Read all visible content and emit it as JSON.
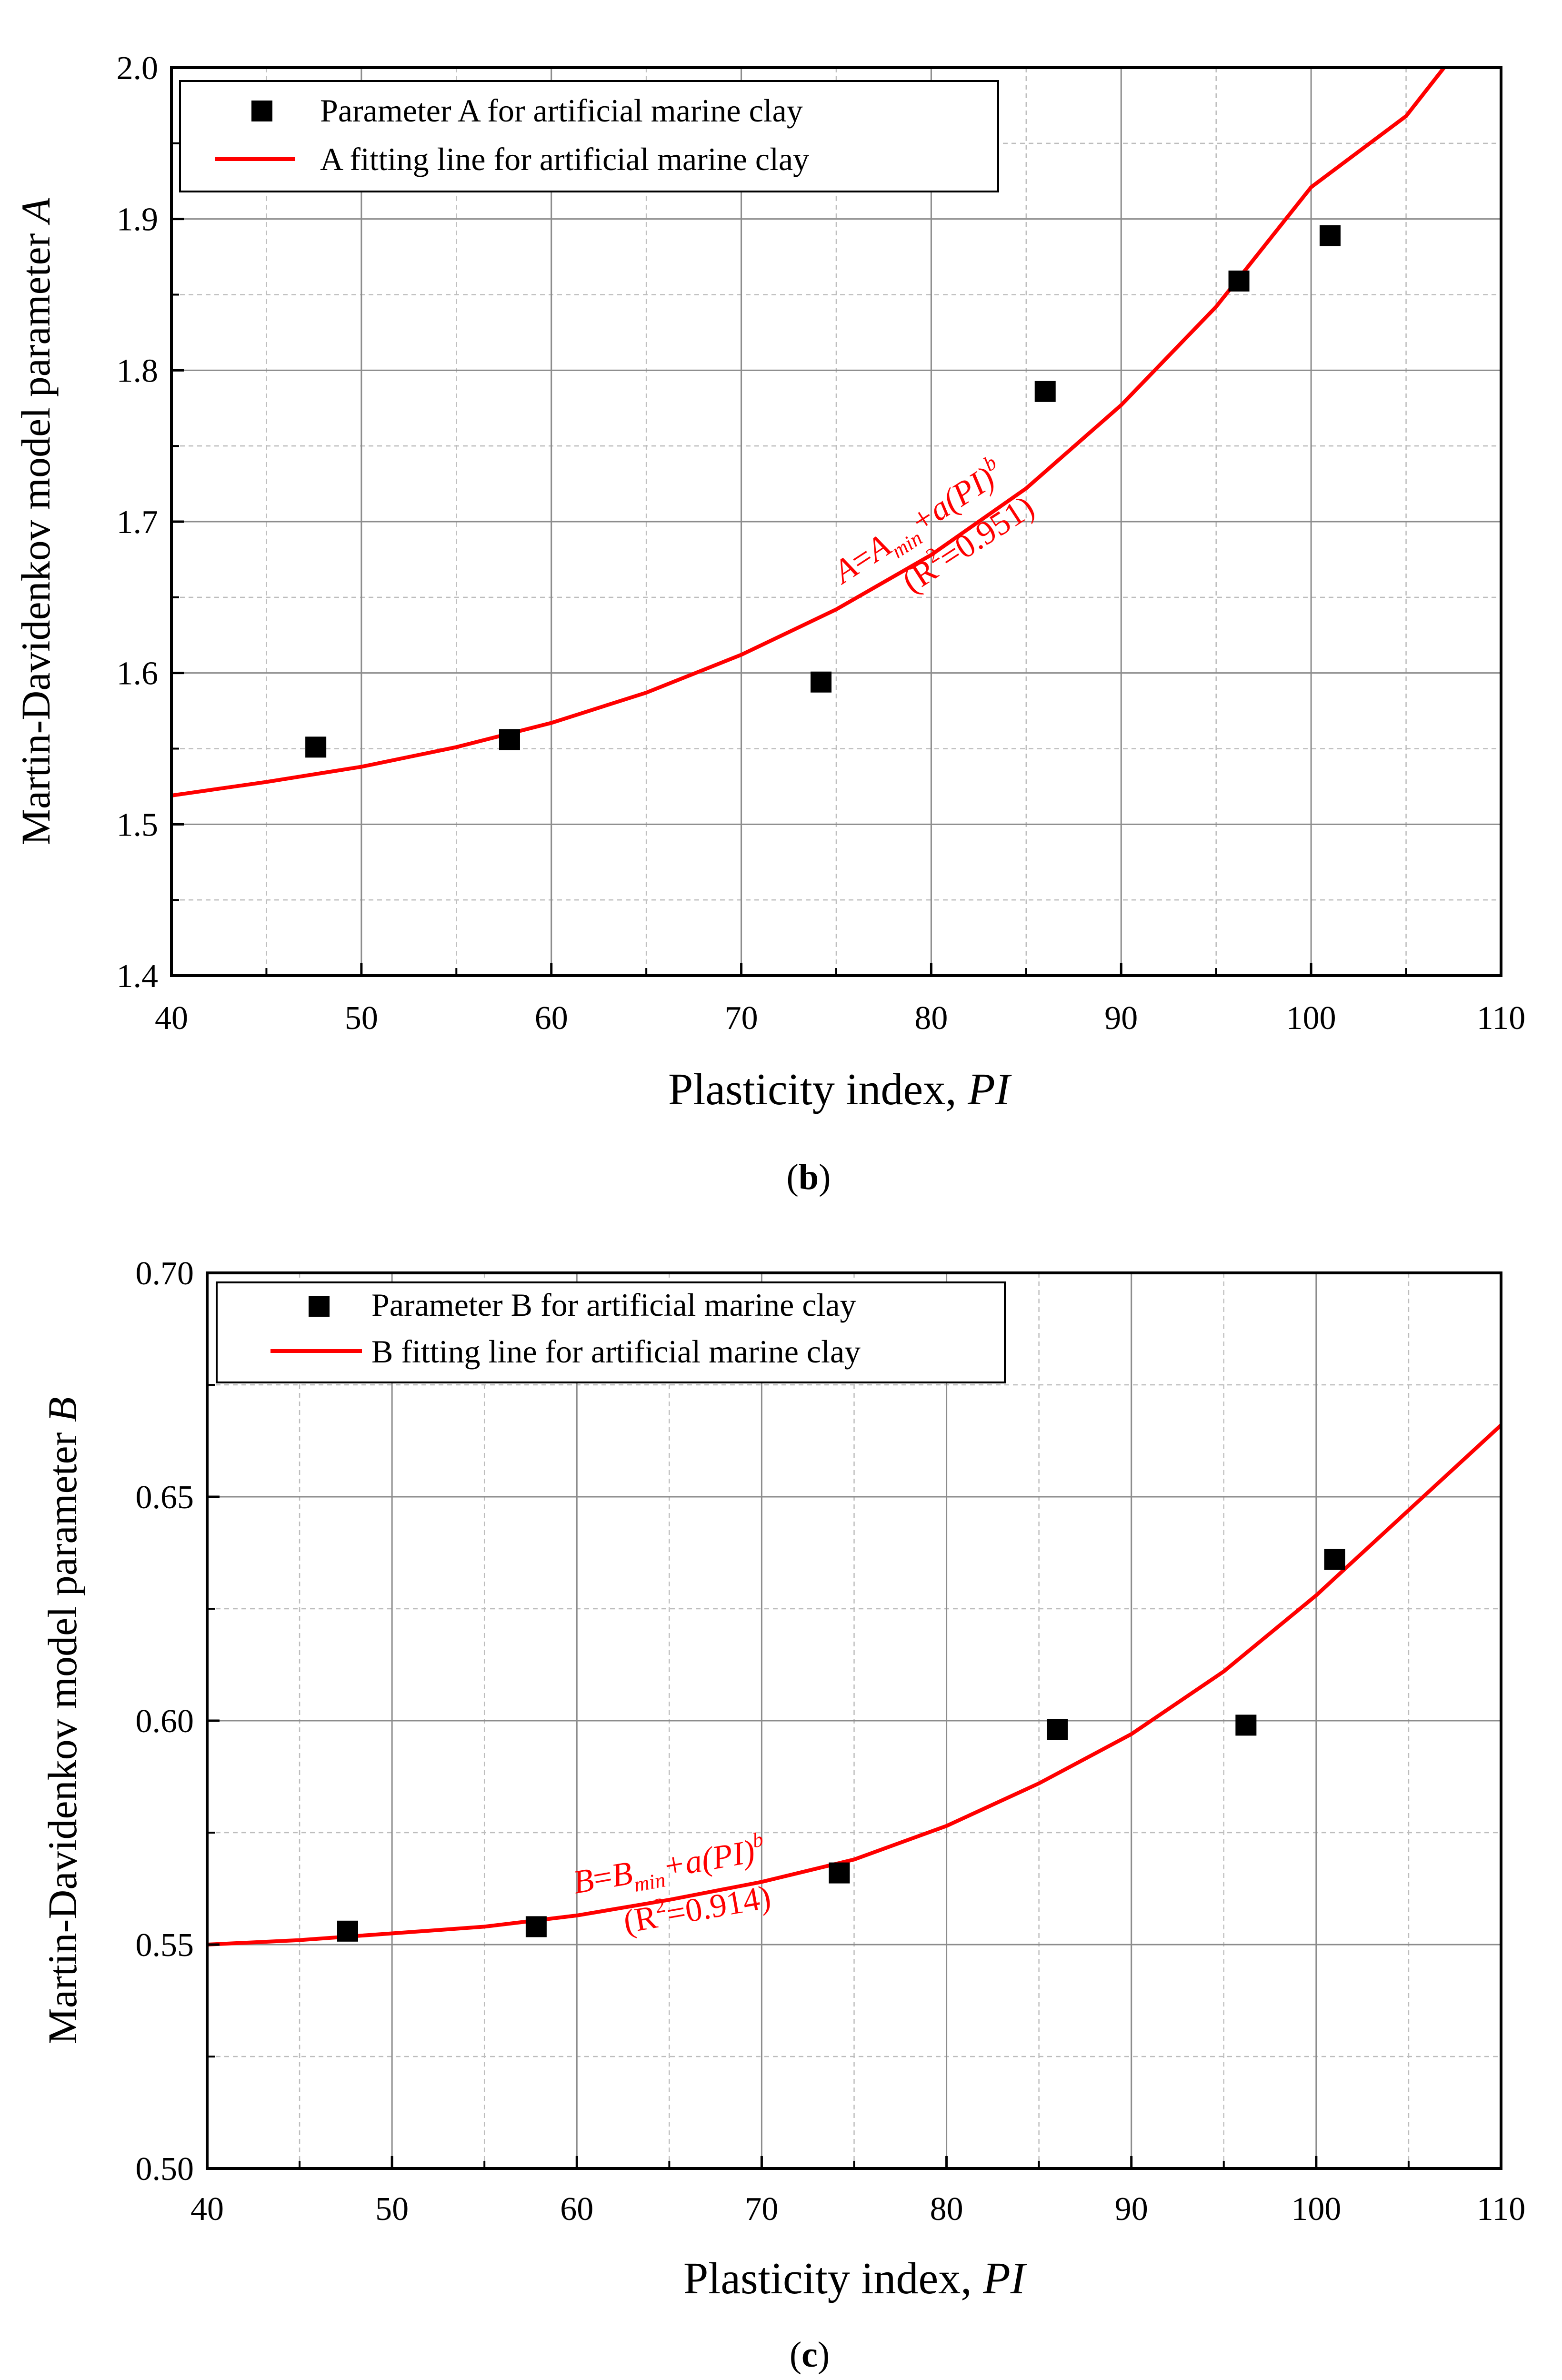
{
  "chart_data": [
    {
      "panel": "b",
      "caption": "b",
      "type": "scatter",
      "xlabel": "Plasticity index, ",
      "xlabel_var": "PI",
      "ylabel": "Martin-Davidenkov model parameter ",
      "ylabel_var": "A",
      "xlim": [
        40,
        110
      ],
      "ylim": [
        1.4,
        2.0
      ],
      "xticks": [
        40,
        50,
        60,
        70,
        80,
        90,
        100,
        110
      ],
      "xtick_labels": [
        "40",
        "50",
        "60",
        "70",
        "80",
        "90",
        "100",
        "110"
      ],
      "yticks": [
        1.4,
        1.5,
        1.6,
        1.7,
        1.8,
        1.9,
        2.0
      ],
      "ytick_labels": [
        "1.4",
        "1.5",
        "1.6",
        "1.7",
        "1.8",
        "1.9",
        "2.0"
      ],
      "grid": true,
      "legend_position": "top-left",
      "series": [
        {
          "name": "Parameter A for artificial marine clay",
          "kind": "marker",
          "color": "#000000",
          "x": [
            47.6,
            57.8,
            74.2,
            86.0,
            96.2,
            101.0
          ],
          "y": [
            1.551,
            1.556,
            1.594,
            1.786,
            1.859,
            1.889
          ]
        },
        {
          "name": "A fitting line for artificial marine clay",
          "kind": "line",
          "color": "#ff0000",
          "x": [
            40,
            45,
            50,
            55,
            60,
            65,
            70,
            75,
            80,
            85,
            90,
            95,
            100,
            105,
            107
          ],
          "y": [
            1.519,
            1.528,
            1.538,
            1.551,
            1.567,
            1.587,
            1.612,
            1.642,
            1.678,
            1.722,
            1.777,
            1.842,
            1.921,
            1.968,
            2.0
          ]
        }
      ],
      "annotation": {
        "eq_var": "A",
        "eq_eq": "=",
        "eq_min_var": "A",
        "eq_sub": "min",
        "eq_term": "+a(PI)",
        "eq_sup": "b",
        "r_open": "(R",
        "r_sup": "2",
        "r_close": "=0.951)"
      }
    },
    {
      "panel": "c",
      "caption": "c",
      "type": "scatter",
      "xlabel": "Plasticity index, ",
      "xlabel_var": "PI",
      "ylabel": "Martin-Davidenkov model parameter ",
      "ylabel_var": "B",
      "xlim": [
        40,
        110
      ],
      "ylim": [
        0.5,
        0.7
      ],
      "xticks": [
        40,
        50,
        60,
        70,
        80,
        90,
        100,
        110
      ],
      "xtick_labels": [
        "40",
        "50",
        "60",
        "70",
        "80",
        "90",
        "100",
        "110"
      ],
      "yticks": [
        0.5,
        0.55,
        0.6,
        0.65,
        0.7
      ],
      "ytick_labels": [
        "0.50",
        "0.55",
        "0.60",
        "0.65",
        "0.70"
      ],
      "grid": true,
      "legend_position": "top-left",
      "series": [
        {
          "name": "Parameter B for artificial marine clay",
          "kind": "marker",
          "color": "#000000",
          "x": [
            47.6,
            57.8,
            74.2,
            86.0,
            96.2,
            101.0
          ],
          "y": [
            0.553,
            0.554,
            0.566,
            0.598,
            0.599,
            0.636
          ]
        },
        {
          "name": "B fitting line for artificial marine clay",
          "kind": "line",
          "color": "#ff0000",
          "x": [
            40,
            45,
            50,
            55,
            60,
            65,
            70,
            75,
            80,
            85,
            90,
            95,
            100,
            105,
            110
          ],
          "y": [
            0.55,
            0.551,
            0.5525,
            0.554,
            0.5565,
            0.56,
            0.564,
            0.569,
            0.5765,
            0.586,
            0.597,
            0.611,
            0.628,
            0.647,
            0.666
          ]
        }
      ],
      "annotation": {
        "eq_var": "B",
        "eq_eq": "=",
        "eq_min_var": "B",
        "eq_sub": "min",
        "eq_term": "+a(PI)",
        "eq_sup": "b",
        "r_open": "(R",
        "r_sup": "2",
        "r_close": "=0.914)"
      }
    }
  ]
}
